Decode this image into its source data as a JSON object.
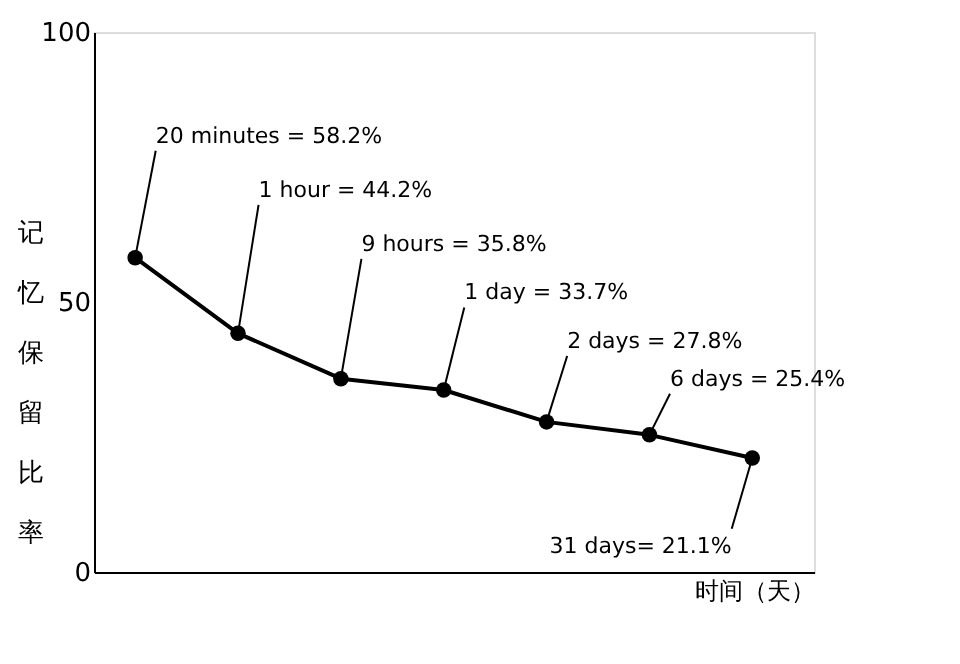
{
  "chart_data": {
    "type": "line",
    "xlabel": "时间（天）",
    "ylabel": "记忆保留比率",
    "categories": [
      null,
      null,
      null,
      null,
      null,
      null,
      null
    ],
    "series": [
      {
        "color": "#000000",
        "values": [
          58.2,
          44.2,
          35.8,
          33.7,
          27.8,
          25.4,
          21.1
        ]
      }
    ],
    "annotations": [
      "20 minutes = 58.2%",
      "1 hour = 44.2%",
      "9 hours = 35.8%",
      "1 day = 33.7%",
      "2 days = 27.8%",
      "6 days = 25.4%",
      "31 days= 21.1%"
    ],
    "ylim": [
      0,
      100
    ],
    "yticks": [
      0,
      50,
      100
    ],
    "grid": false,
    "marker": "circle",
    "line_style": "solid",
    "tick_labels": "y"
  }
}
